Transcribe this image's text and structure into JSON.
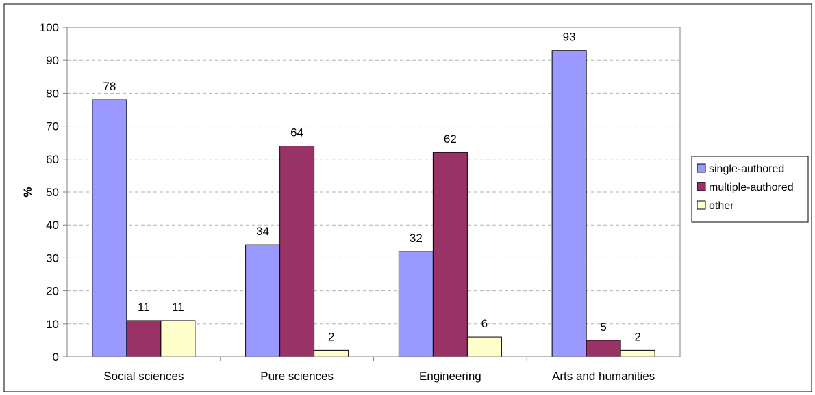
{
  "chart_data": {
    "type": "bar",
    "title": "",
    "xlabel": "",
    "ylabel": "%",
    "ylim": [
      0,
      100
    ],
    "yticks": [
      0,
      10,
      20,
      30,
      40,
      50,
      60,
      70,
      80,
      90,
      100
    ],
    "grid": true,
    "legend_position": "right",
    "categories": [
      "Social sciences",
      "Pure sciences",
      "Engineering",
      "Arts and humanities"
    ],
    "series": [
      {
        "name": "single-authored",
        "color": "#9999ff",
        "values": [
          78,
          34,
          32,
          93
        ]
      },
      {
        "name": "multiple-authored",
        "color": "#993366",
        "values": [
          11,
          64,
          62,
          5
        ]
      },
      {
        "name": "other",
        "color": "#ffffcc",
        "values": [
          11,
          2,
          6,
          2
        ]
      }
    ]
  }
}
